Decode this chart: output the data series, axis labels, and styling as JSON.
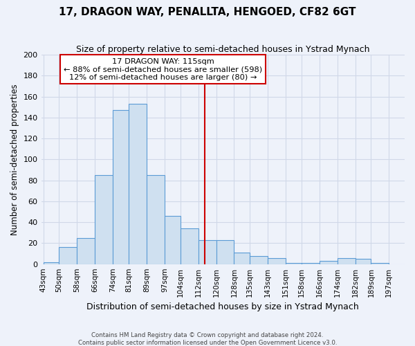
{
  "title": "17, DRAGON WAY, PENALLTA, HENGOED, CF82 6GT",
  "subtitle": "Size of property relative to semi-detached houses in Ystrad Mynach",
  "xlabel": "Distribution of semi-detached houses by size in Ystrad Mynach",
  "ylabel": "Number of semi-detached properties",
  "bin_labels": [
    "43sqm",
    "50sqm",
    "58sqm",
    "66sqm",
    "74sqm",
    "81sqm",
    "89sqm",
    "97sqm",
    "104sqm",
    "112sqm",
    "120sqm",
    "128sqm",
    "135sqm",
    "143sqm",
    "151sqm",
    "158sqm",
    "166sqm",
    "174sqm",
    "182sqm",
    "189sqm",
    "197sqm"
  ],
  "bin_edges": [
    43,
    50,
    58,
    66,
    74,
    81,
    89,
    97,
    104,
    112,
    120,
    128,
    135,
    143,
    151,
    158,
    166,
    174,
    182,
    189,
    197
  ],
  "bar_heights": [
    2,
    16,
    25,
    85,
    147,
    153,
    85,
    46,
    34,
    23,
    23,
    11,
    8,
    6,
    1,
    1,
    3,
    6,
    5,
    1
  ],
  "bar_color": "#cfe0f0",
  "bar_edge_color": "#5b9bd5",
  "grid_color": "#d0d8e8",
  "background_color": "#eef2fa",
  "vline_x": 115,
  "vline_color": "#cc0000",
  "ylim": [
    0,
    200
  ],
  "yticks": [
    0,
    20,
    40,
    60,
    80,
    100,
    120,
    140,
    160,
    180,
    200
  ],
  "annotation_title": "17 DRAGON WAY: 115sqm",
  "annotation_line1": "← 88% of semi-detached houses are smaller (598)",
  "annotation_line2": "12% of semi-detached houses are larger (80) →",
  "annotation_box_color": "#ffffff",
  "annotation_box_edge": "#cc0000",
  "footer1": "Contains HM Land Registry data © Crown copyright and database right 2024.",
  "footer2": "Contains public sector information licensed under the Open Government Licence v3.0."
}
